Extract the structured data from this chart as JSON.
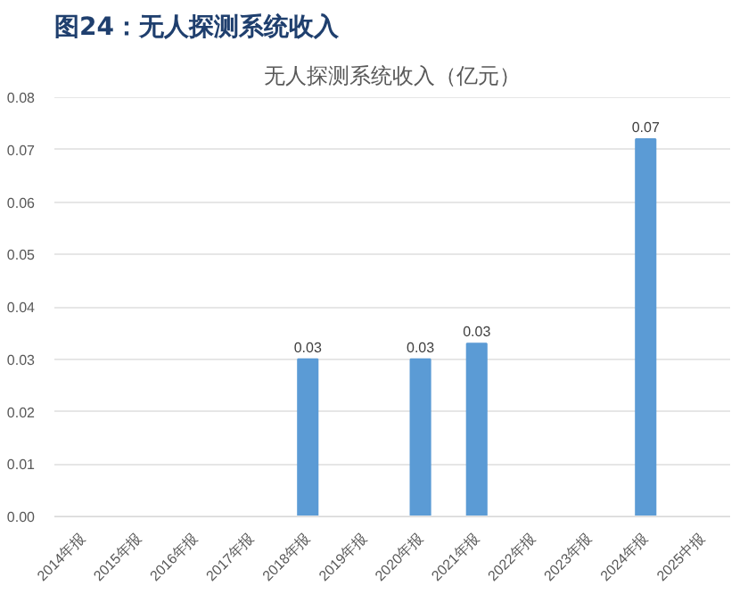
{
  "chart_data": {
    "type": "bar",
    "title": "图24：无人探测系统收入",
    "subtitle": "无人探测系统收入（亿元）",
    "categories": [
      "2014年报",
      "2015年报",
      "2016年报",
      "2017年报",
      "2018年报",
      "2019年报",
      "2020年报",
      "2021年报",
      "2022年报",
      "2023年报",
      "2024年报",
      "2025中报"
    ],
    "values": [
      null,
      null,
      null,
      null,
      0.03,
      null,
      0.03,
      0.033,
      null,
      null,
      0.072,
      null
    ],
    "value_labels": [
      null,
      null,
      null,
      null,
      "0.03",
      null,
      "0.03",
      "0.03",
      null,
      null,
      "0.07",
      null
    ],
    "color": "#5b9bd5",
    "ylim": [
      0,
      0.08
    ],
    "yticks": [
      "0.00",
      "0.01",
      "0.02",
      "0.03",
      "0.04",
      "0.05",
      "0.06",
      "0.07",
      "0.08"
    ],
    "grid": "y"
  }
}
